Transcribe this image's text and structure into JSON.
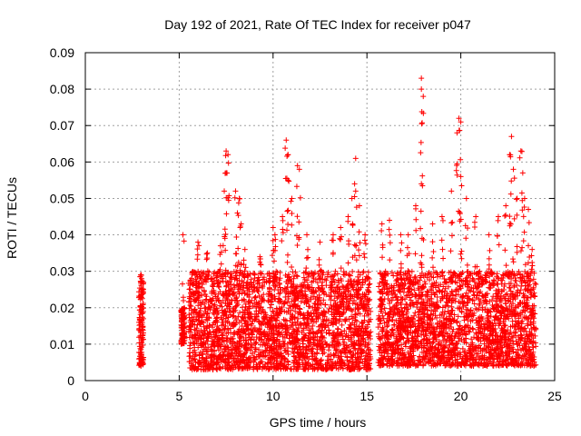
{
  "chart_data": {
    "type": "scatter",
    "title": "Day 192 of 2021, Rate Of TEC Index for receiver p047",
    "xlabel": "GPS time / hours",
    "ylabel": "ROTI / TECUs",
    "xlim": [
      0,
      25
    ],
    "ylim": [
      0,
      0.09
    ],
    "x_ticks": [
      "0",
      "5",
      "10",
      "15",
      "20",
      "25"
    ],
    "y_ticks": [
      "0",
      "0.01",
      "0.02",
      "0.03",
      "0.04",
      "0.05",
      "0.06",
      "0.07",
      "0.08",
      "0.09"
    ],
    "grid": true,
    "marker": "plus",
    "color": "#ff0000",
    "segments": [
      {
        "x_range": [
          2.85,
          3.1
        ],
        "y_base": [
          0.004,
          0.027
        ],
        "spikes": [
          [
            2.95,
            0.029
          ],
          [
            3.0,
            0.028
          ]
        ]
      },
      {
        "x_range": [
          5.1,
          5.3
        ],
        "y_base": [
          0.01,
          0.02
        ],
        "spikes": [
          [
            5.2,
            0.04
          ]
        ]
      },
      {
        "x_range": [
          5.5,
          15.2
        ],
        "y_base": [
          0.003,
          0.03
        ],
        "spikes": [
          [
            6.0,
            0.038
          ],
          [
            6.5,
            0.035
          ],
          [
            7.2,
            0.037
          ],
          [
            7.5,
            0.063
          ],
          [
            7.6,
            0.062
          ],
          [
            7.5,
            0.057
          ],
          [
            7.4,
            0.052
          ],
          [
            8.0,
            0.052
          ],
          [
            8.2,
            0.05
          ],
          [
            8.1,
            0.046
          ],
          [
            8.3,
            0.043
          ],
          [
            8.5,
            0.036
          ],
          [
            9.3,
            0.034
          ],
          [
            10.0,
            0.042
          ],
          [
            10.1,
            0.04
          ],
          [
            10.5,
            0.045
          ],
          [
            10.7,
            0.066
          ],
          [
            10.8,
            0.062
          ],
          [
            10.8,
            0.055
          ],
          [
            11.3,
            0.059
          ],
          [
            11.4,
            0.058
          ],
          [
            11.0,
            0.05
          ],
          [
            11.8,
            0.04
          ],
          [
            12.5,
            0.038
          ],
          [
            13.2,
            0.04
          ],
          [
            13.6,
            0.042
          ],
          [
            14.0,
            0.045
          ],
          [
            14.2,
            0.05
          ],
          [
            14.4,
            0.052
          ],
          [
            14.4,
            0.061
          ],
          [
            14.6,
            0.048
          ],
          [
            14.9,
            0.04
          ]
        ]
      },
      {
        "x_range": [
          15.6,
          24.0
        ],
        "y_base": [
          0.004,
          0.03
        ],
        "spikes": [
          [
            15.8,
            0.043
          ],
          [
            16.2,
            0.044
          ],
          [
            16.8,
            0.04
          ],
          [
            17.2,
            0.04
          ],
          [
            17.6,
            0.048
          ],
          [
            17.9,
            0.083
          ],
          [
            17.9,
            0.08
          ],
          [
            18.0,
            0.078
          ],
          [
            17.9,
            0.054
          ],
          [
            18.5,
            0.043
          ],
          [
            19.0,
            0.045
          ],
          [
            19.5,
            0.052
          ],
          [
            19.8,
            0.068
          ],
          [
            19.9,
            0.072
          ],
          [
            20.0,
            0.071
          ],
          [
            20.0,
            0.056
          ],
          [
            20.3,
            0.05
          ],
          [
            20.8,
            0.045
          ],
          [
            21.5,
            0.04
          ],
          [
            22.0,
            0.045
          ],
          [
            22.4,
            0.048
          ],
          [
            22.6,
            0.062
          ],
          [
            22.7,
            0.067
          ],
          [
            22.8,
            0.058
          ],
          [
            23.0,
            0.05
          ],
          [
            23.2,
            0.063
          ],
          [
            23.3,
            0.057
          ],
          [
            23.4,
            0.05
          ],
          [
            23.6,
            0.047
          ],
          [
            23.8,
            0.036
          ]
        ]
      }
    ]
  }
}
